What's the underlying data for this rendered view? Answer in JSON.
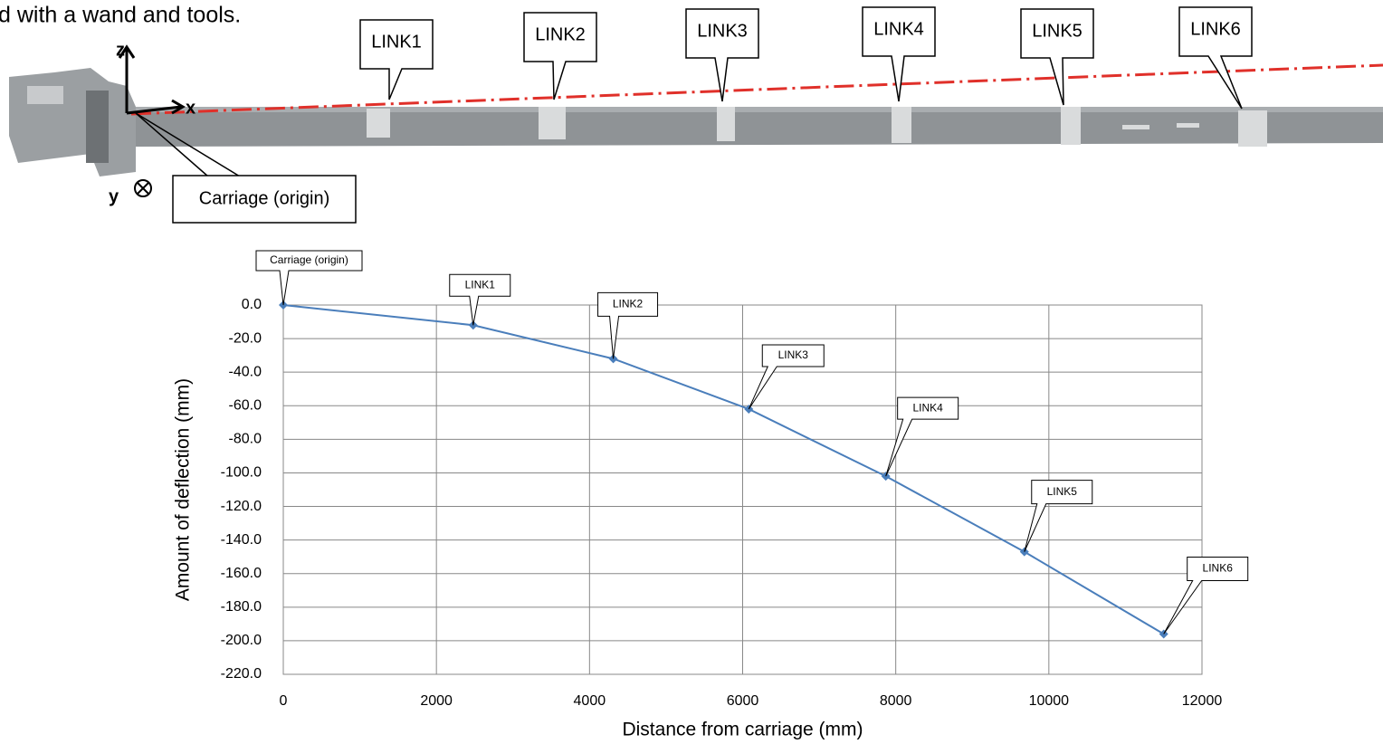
{
  "caption_fragment": "d with a wand and tools.",
  "diagram": {
    "axis_labels": [
      "z",
      "x",
      "y"
    ],
    "origin_label": "Carriage (origin)",
    "link_labels": [
      "LINK1",
      "LINK2",
      "LINK3",
      "LINK4",
      "LINK5",
      "LINK6"
    ]
  },
  "chart_data": {
    "type": "line",
    "xlabel": "Distance from carriage (mm)",
    "ylabel": "Amount of deflection (mm)",
    "x": [
      0,
      2480,
      4310,
      6080,
      7870,
      9680,
      11500
    ],
    "values": [
      0,
      -12,
      -32,
      -62,
      -102,
      -147,
      -196
    ],
    "point_labels": [
      "Carriage (origin)",
      "LINK1",
      "LINK2",
      "LINK3",
      "LINK4",
      "LINK5",
      "LINK6"
    ],
    "color": "#4a7ebb",
    "xlim": [
      0,
      12000
    ],
    "xticks": [
      0,
      2000,
      4000,
      6000,
      8000,
      10000,
      12000
    ],
    "ylim": [
      -220,
      0
    ],
    "yticks": [
      {
        "value": 0,
        "label": "0.0"
      },
      {
        "value": -20,
        "label": "-20.0"
      },
      {
        "value": -40,
        "label": "-40.0"
      },
      {
        "value": -60,
        "label": "-60.0"
      },
      {
        "value": -80,
        "label": "-80.0"
      },
      {
        "value": -100,
        "label": "-100.0"
      },
      {
        "value": -120,
        "label": "-120.0"
      },
      {
        "value": -140,
        "label": "-140.0"
      },
      {
        "value": -160,
        "label": "-160.0"
      },
      {
        "value": -180,
        "label": "-180.0"
      },
      {
        "value": -200,
        "label": "-200.0"
      },
      {
        "value": -220,
        "label": "-220.0"
      }
    ],
    "grid": true
  }
}
